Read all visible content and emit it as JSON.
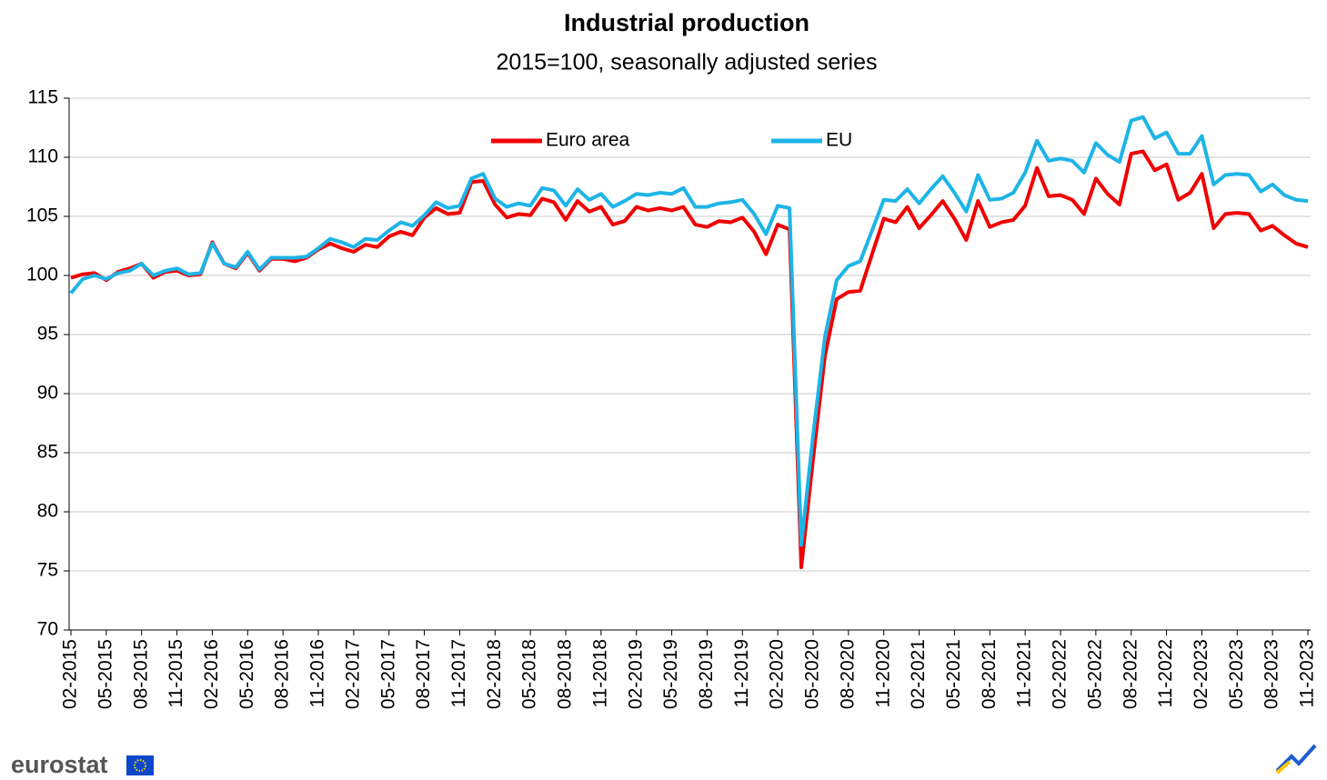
{
  "chart_data": {
    "type": "line",
    "title": "Industrial production",
    "subtitle": "2015=100, seasonally adjusted series",
    "logo_text": "eurostat",
    "categories": [
      "02-2015",
      null,
      null,
      "05-2015",
      null,
      null,
      "08-2015",
      null,
      null,
      "11-2015",
      null,
      null,
      "02-2016",
      null,
      null,
      "05-2016",
      null,
      null,
      "08-2016",
      null,
      null,
      "11-2016",
      null,
      null,
      "02-2017",
      null,
      null,
      "05-2017",
      null,
      null,
      "08-2017",
      null,
      null,
      "11-2017",
      null,
      null,
      "02-2018",
      null,
      null,
      "05-2018",
      null,
      null,
      "08-2018",
      null,
      null,
      "11-2018",
      null,
      null,
      "02-2019",
      null,
      null,
      "05-2019",
      null,
      null,
      "08-2019",
      null,
      null,
      "11-2019",
      null,
      null,
      "02-2020",
      null,
      null,
      "05-2020",
      null,
      null,
      "08-2020",
      null,
      null,
      "11-2020",
      null,
      null,
      "02-2021",
      null,
      null,
      "05-2021",
      null,
      null,
      "08-2021",
      null,
      null,
      "11-2021",
      null,
      null,
      "02-2022",
      null,
      null,
      "05-2022",
      null,
      null,
      "08-2022",
      null,
      null,
      "11-2022",
      null,
      null,
      "02-2023",
      null,
      null,
      "05-2023",
      null,
      null,
      "08-2023",
      null,
      null,
      "11-2023"
    ],
    "series": [
      {
        "name": "Euro area",
        "color": "#f00000",
        "values": [
          99.8,
          100.1,
          100.2,
          99.6,
          100.3,
          100.6,
          101.0,
          99.8,
          100.3,
          100.4,
          100.0,
          100.1,
          102.8,
          101.0,
          100.6,
          101.9,
          100.4,
          101.4,
          101.4,
          101.2,
          101.5,
          102.2,
          102.7,
          102.3,
          102.0,
          102.6,
          102.4,
          103.3,
          103.7,
          103.4,
          104.9,
          105.7,
          105.2,
          105.3,
          107.9,
          108.0,
          106.0,
          104.9,
          105.2,
          105.1,
          106.5,
          106.2,
          104.7,
          106.3,
          105.4,
          105.8,
          104.3,
          104.6,
          105.8,
          105.5,
          105.7,
          105.5,
          105.8,
          104.3,
          104.1,
          104.6,
          104.5,
          104.9,
          103.7,
          101.8,
          104.3,
          103.9,
          75.3,
          84.5,
          93.2,
          98.0,
          98.6,
          98.7,
          101.8,
          104.8,
          104.5,
          105.8,
          104.0,
          105.1,
          106.3,
          104.8,
          103.0,
          106.3,
          104.1,
          104.5,
          104.7,
          105.9,
          109.1,
          106.7,
          106.8,
          106.4,
          105.2,
          108.2,
          106.9,
          106.0,
          110.3,
          110.5,
          108.9,
          109.4,
          106.4,
          107.0,
          108.6,
          104.0,
          105.2,
          105.3,
          105.2,
          103.8,
          104.2,
          103.4,
          102.7,
          102.4
        ]
      },
      {
        "name": "EU",
        "color": "#1eb4e6",
        "values": [
          98.5,
          99.7,
          100.0,
          99.7,
          100.2,
          100.4,
          101.0,
          100.0,
          100.4,
          100.6,
          100.1,
          100.2,
          102.7,
          101.0,
          100.7,
          102.0,
          100.5,
          101.5,
          101.5,
          101.5,
          101.6,
          102.3,
          103.1,
          102.8,
          102.4,
          103.1,
          103.0,
          103.8,
          104.5,
          104.2,
          105.1,
          106.2,
          105.7,
          105.9,
          108.2,
          108.6,
          106.5,
          105.8,
          106.1,
          105.9,
          107.4,
          107.2,
          105.9,
          107.3,
          106.4,
          106.9,
          105.8,
          106.3,
          106.9,
          106.8,
          107.0,
          106.9,
          107.4,
          105.8,
          105.8,
          106.1,
          106.2,
          106.4,
          105.2,
          103.5,
          105.9,
          105.7,
          77.2,
          86.5,
          94.8,
          99.6,
          100.8,
          101.2,
          103.8,
          106.4,
          106.3,
          107.3,
          106.1,
          107.3,
          108.4,
          107.0,
          105.4,
          108.5,
          106.4,
          106.5,
          107.0,
          108.7,
          111.4,
          109.7,
          109.9,
          109.7,
          108.7,
          111.2,
          110.2,
          109.6,
          113.1,
          113.4,
          111.6,
          112.1,
          110.3,
          110.3,
          111.8,
          107.7,
          108.5,
          108.6,
          108.5,
          107.1,
          107.7,
          106.8,
          106.4,
          106.3
        ]
      }
    ],
    "ylim": [
      70,
      115
    ],
    "yticks": [
      70,
      75,
      80,
      85,
      90,
      95,
      100,
      105,
      110,
      115
    ],
    "grid": true,
    "legend": "top"
  }
}
